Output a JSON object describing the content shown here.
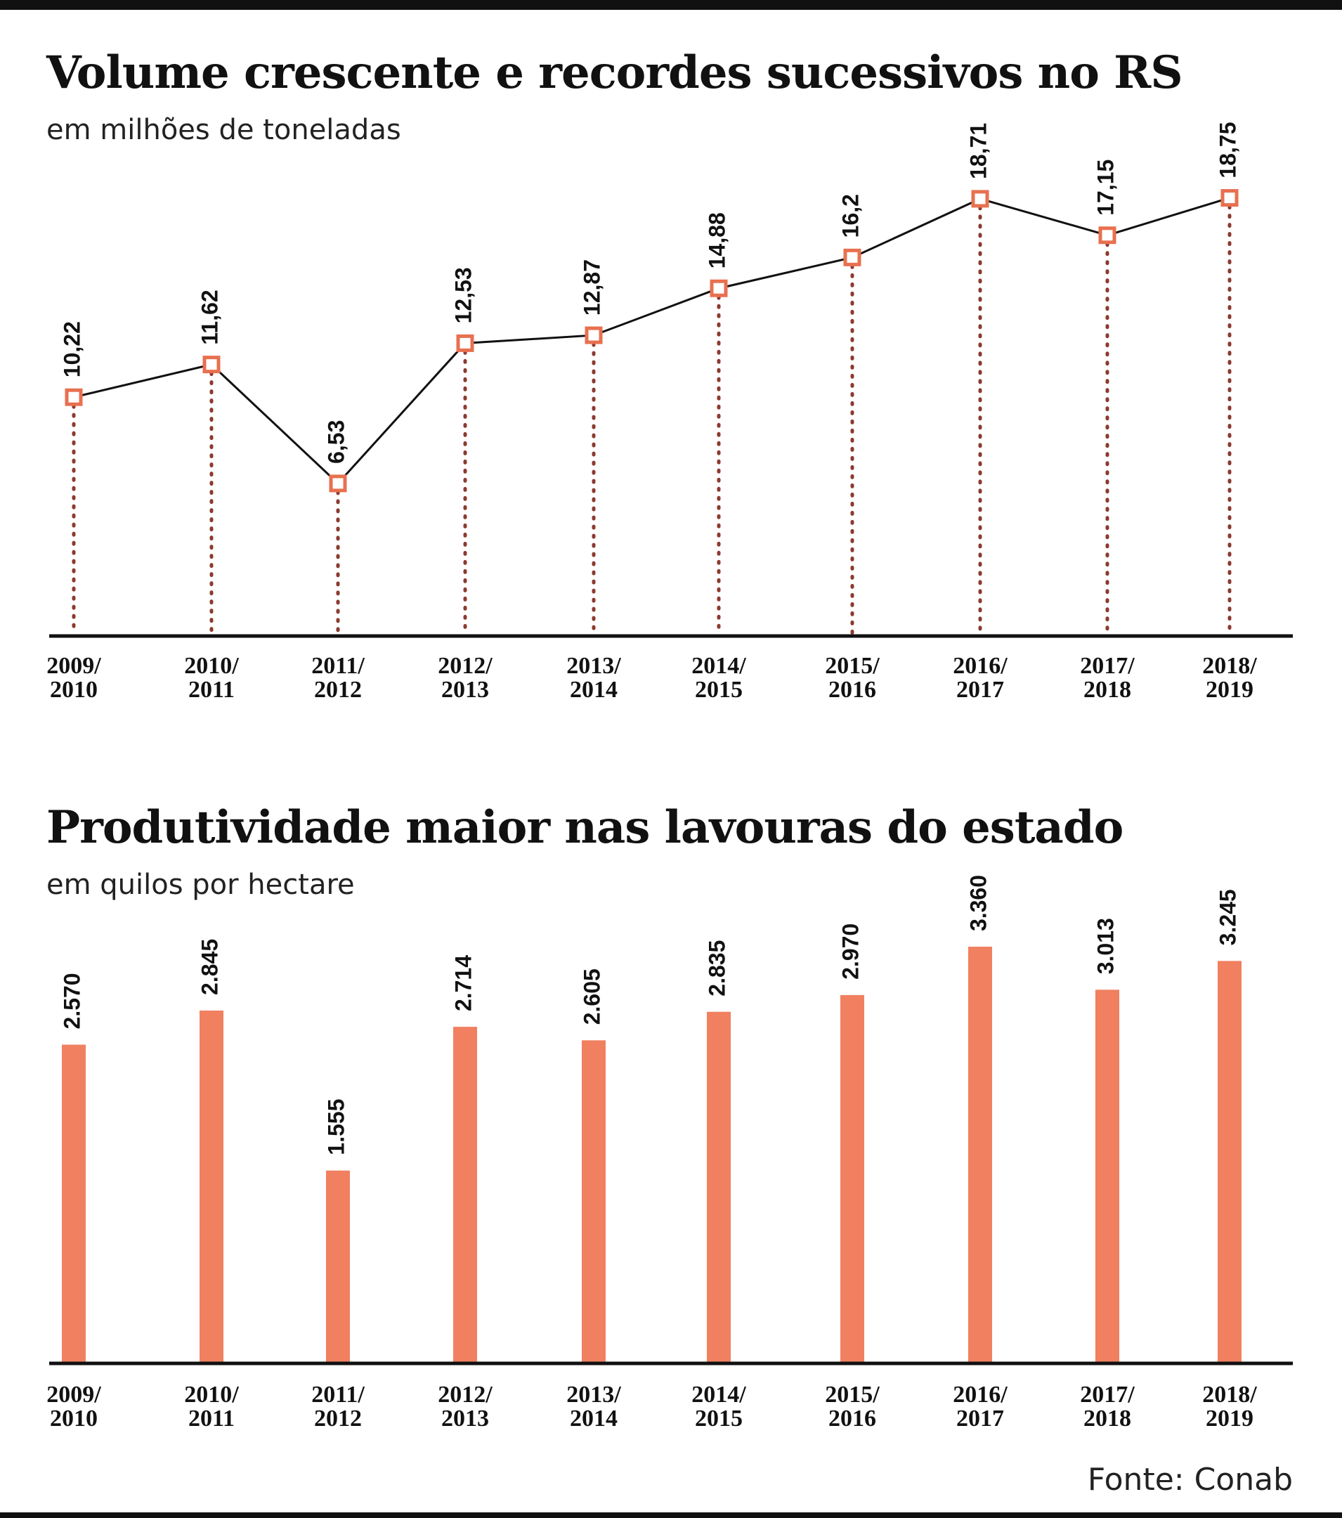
{
  "chart_data": [
    {
      "type": "line",
      "title": "Volume crescente e recordes sucessivos no RS",
      "subtitle": "em milhões de toneladas",
      "categories": [
        "2009/\n2010",
        "2010/\n2011",
        "2011/\n2012",
        "2012/\n2013",
        "2013/\n2014",
        "2014/\n2015",
        "2015/\n2016",
        "2016/\n2017",
        "2017/\n2018",
        "2018/\n2019"
      ],
      "values": [
        10.22,
        11.62,
        6.53,
        12.53,
        12.87,
        14.88,
        16.2,
        18.71,
        17.15,
        18.75
      ],
      "value_labels": [
        "10,22",
        "11,62",
        "6,53",
        "12,53",
        "12,87",
        "14,88",
        "16,2",
        "18,71",
        "17,15",
        "18,75"
      ],
      "ylim": [
        0,
        20
      ],
      "grid": false,
      "colors": {
        "marker": "#E8704F",
        "line": "#111111",
        "dots": "#8B3A2F",
        "axis": "#111111"
      }
    },
    {
      "type": "bar",
      "title": "Produtividade maior nas lavouras do estado",
      "subtitle": "em quilos por hectare",
      "categories": [
        "2009/\n2010",
        "2010/\n2011",
        "2011/\n2012",
        "2012/\n2013",
        "2013/\n2014",
        "2014/\n2015",
        "2015/\n2016",
        "2016/\n2017",
        "2017/\n2018",
        "2018/\n2019"
      ],
      "values": [
        2570,
        2845,
        1555,
        2714,
        2605,
        2835,
        2970,
        3360,
        3013,
        3245
      ],
      "value_labels": [
        "2.570",
        "2.845",
        "1.555",
        "2.714",
        "2.605",
        "2.835",
        "2.970",
        "3.360",
        "3.013",
        "3.245"
      ],
      "ylim": [
        0,
        3400
      ],
      "grid": false,
      "colors": {
        "bar": "#F08060",
        "axis": "#111111"
      }
    }
  ],
  "source": "Fonte: Conab"
}
